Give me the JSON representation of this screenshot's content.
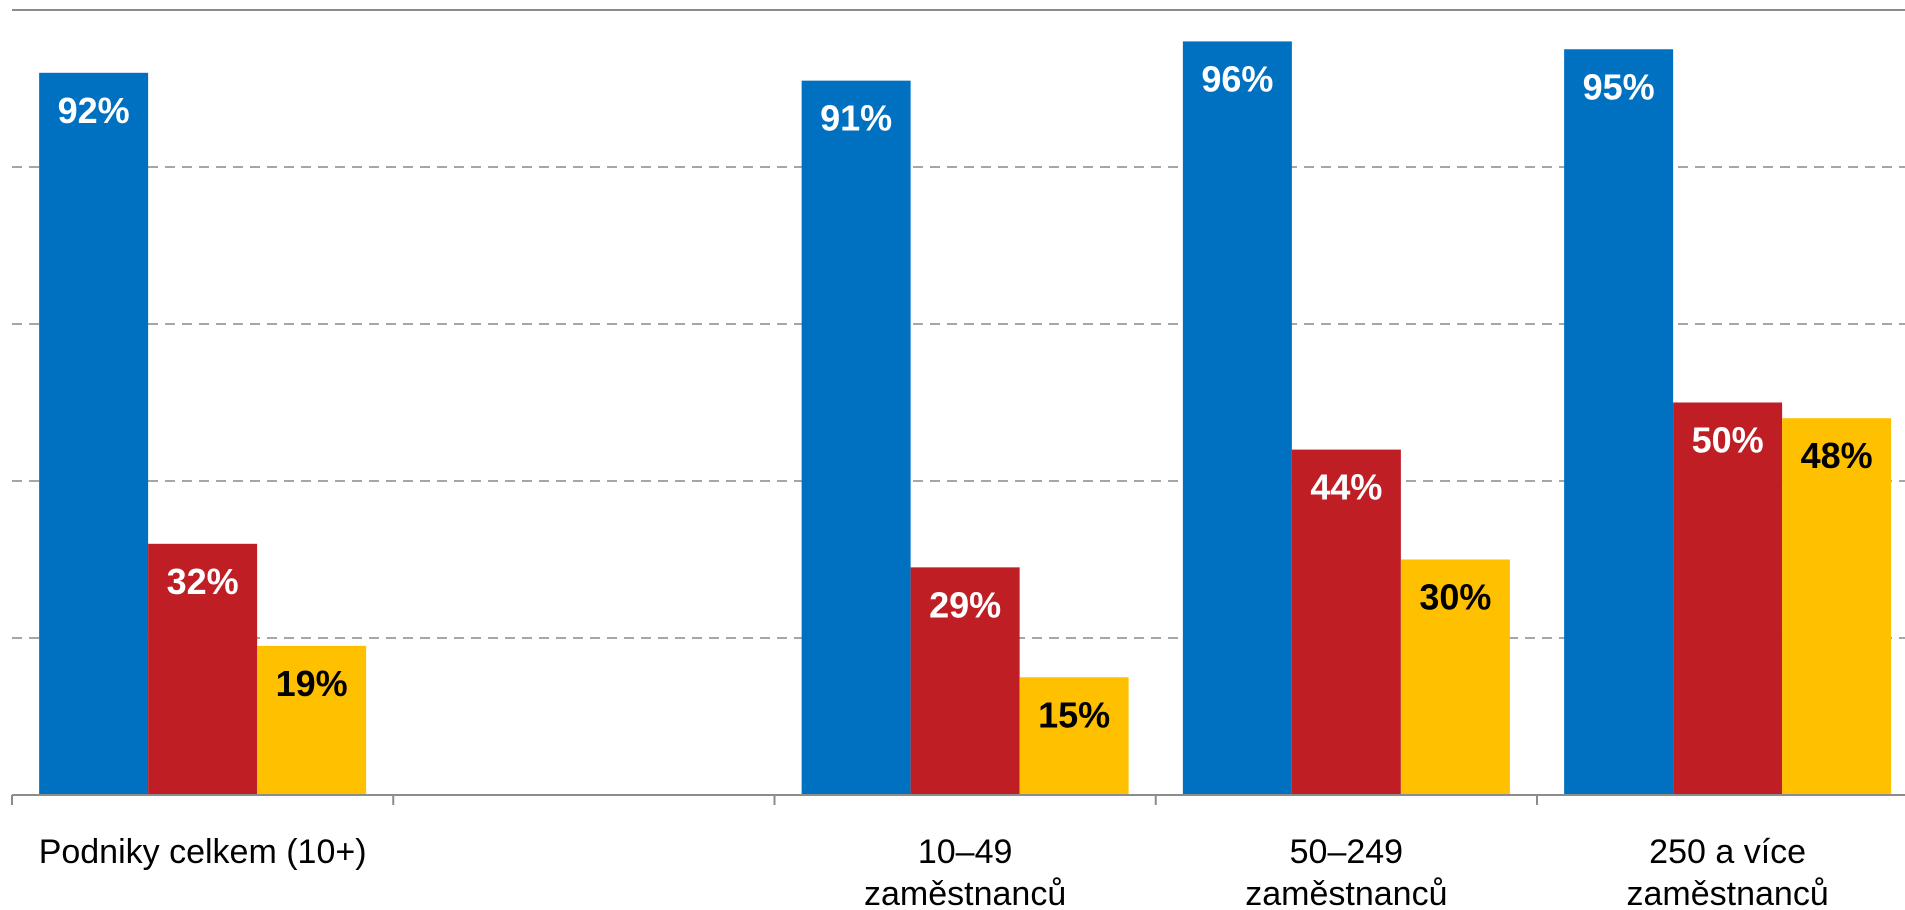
{
  "chart_data": {
    "type": "bar",
    "categories": [
      [
        "Podniky celkem (10+)"
      ],
      [],
      [
        "10–49",
        "zaměstnanců"
      ],
      [
        "50–249",
        "zaměstnanců"
      ],
      [
        "250 a více",
        "zaměstnanců"
      ]
    ],
    "series": [
      {
        "values": [
          92,
          null,
          91,
          96,
          95
        ],
        "labels": [
          "92%",
          "",
          "91%",
          "96%",
          "95%"
        ],
        "color": "#0070C0",
        "label_color": "#FFFFFF"
      },
      {
        "values": [
          32,
          null,
          29,
          44,
          50
        ],
        "labels": [
          "32%",
          "",
          "29%",
          "44%",
          "50%"
        ],
        "color": "#BE1E24",
        "label_color": "#FFFFFF"
      },
      {
        "values": [
          19,
          null,
          15,
          30,
          48
        ],
        "labels": [
          "19%",
          "",
          "15%",
          "30%",
          "48%"
        ],
        "color": "#FFC000",
        "label_color": "#000000"
      }
    ],
    "ylim": [
      0,
      100
    ],
    "y_gridlines": [
      20,
      40,
      60,
      80
    ],
    "grid": true,
    "legend": "none"
  }
}
